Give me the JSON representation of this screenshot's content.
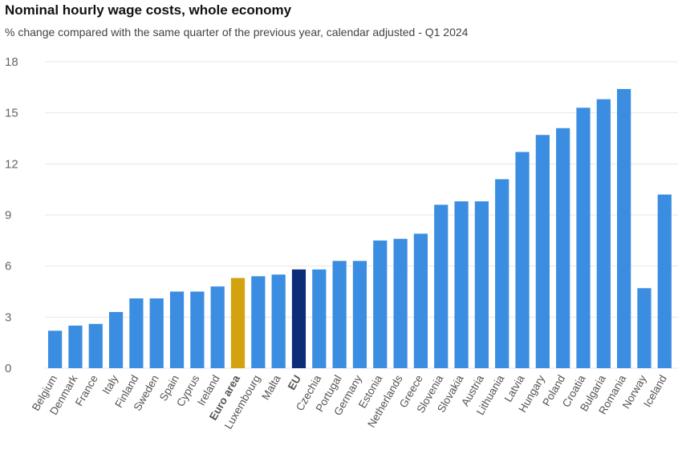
{
  "header": {
    "title": "Nominal hourly wage costs, whole economy",
    "subtitle": "% change compared with the same quarter of the previous year, calendar adjusted - Q1 2024"
  },
  "colors": {
    "default_bar": "#3b8de1",
    "euro_area_bar": "#d4a20f",
    "eu_bar": "#0b2c78",
    "gridline": "#e6e6e6"
  },
  "chart_data": {
    "type": "bar",
    "title": "Nominal hourly wage costs, whole economy",
    "subtitle": "% change compared with the same quarter of the previous year, calendar adjusted - Q1 2024",
    "xlabel": "",
    "ylabel": "",
    "ylim": [
      0,
      18
    ],
    "yticks": [
      0,
      3,
      6,
      9,
      12,
      15,
      18
    ],
    "grid": true,
    "categories": [
      "Belgium",
      "Denmark",
      "France",
      "Italy",
      "Finland",
      "Sweden",
      "Spain",
      "Cyprus",
      "Ireland",
      "Euro area",
      "Luxembourg",
      "Malta",
      "EU",
      "Czechia",
      "Portugal",
      "Germany",
      "Estonia",
      "Netherlands",
      "Greece",
      "Slovenia",
      "Slovakia",
      "Austria",
      "Lithuania",
      "Latvia",
      "Hungary",
      "Poland",
      "Croatia",
      "Bulgaria",
      "Romania",
      "Norway",
      "Iceland"
    ],
    "values": [
      2.2,
      2.5,
      2.6,
      3.3,
      4.1,
      4.1,
      4.5,
      4.5,
      4.8,
      5.3,
      5.4,
      5.5,
      5.8,
      5.8,
      6.3,
      6.3,
      7.5,
      7.6,
      7.9,
      9.6,
      9.8,
      9.8,
      11.1,
      12.7,
      13.7,
      14.1,
      15.3,
      15.8,
      16.4,
      4.7,
      10.2
    ],
    "highlight": {
      "Euro area": "euro_area_bar",
      "EU": "eu_bar"
    },
    "bold_labels": [
      "Euro area",
      "EU"
    ]
  }
}
